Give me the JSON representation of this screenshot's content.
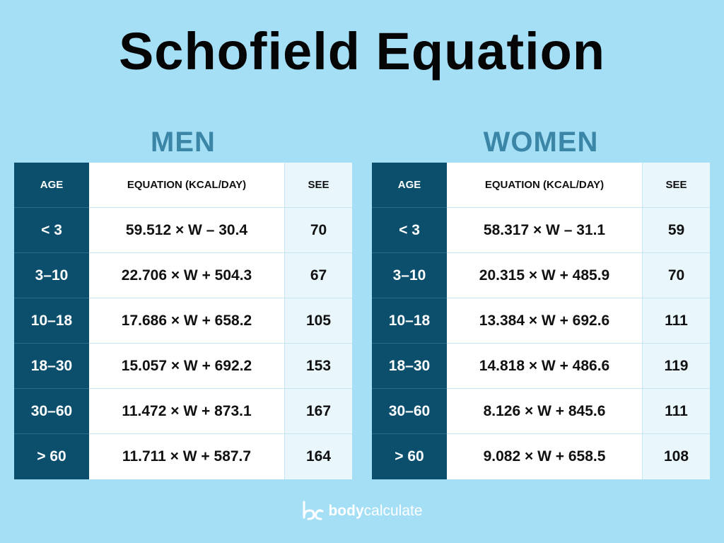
{
  "title": "Schofield Equation",
  "tables": [
    {
      "heading": "MEN",
      "headers": [
        "AGE",
        "EQUATION (KCAL/DAY)",
        "SEE"
      ],
      "rows": [
        [
          "< 3",
          "59.512 × W – 30.4",
          70
        ],
        [
          "3–10",
          "22.706 × W + 504.3",
          67
        ],
        [
          "10–18",
          "17.686 × W + 658.2",
          105
        ],
        [
          "18–30",
          "15.057 × W + 692.2",
          153
        ],
        [
          "30–60",
          "11.472 × W + 873.1",
          167
        ],
        [
          "> 60",
          "11.711 × W + 587.7",
          164
        ]
      ]
    },
    {
      "heading": "WOMEN",
      "headers": [
        "AGE",
        "EQUATION (KCAL/DAY)",
        "SEE"
      ],
      "rows": [
        [
          "< 3",
          "58.317 × W – 31.1",
          59
        ],
        [
          "3–10",
          "20.315 × W + 485.9",
          70
        ],
        [
          "10–18",
          "13.384 × W + 692.6",
          111
        ],
        [
          "18–30",
          "14.818 × W + 486.6",
          119
        ],
        [
          "30–60",
          "8.126 × W + 845.6",
          111
        ],
        [
          "> 60",
          "9.082 × W + 658.5",
          108
        ]
      ]
    }
  ],
  "brand": [
    "body",
    "calculate"
  ]
}
